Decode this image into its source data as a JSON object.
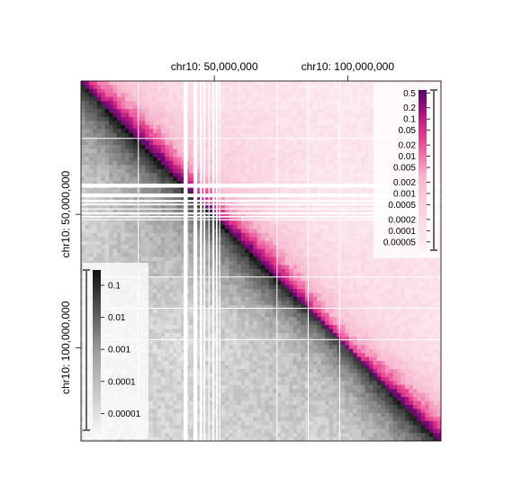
{
  "chart_data": {
    "type": "heatmap",
    "title": "",
    "matrix_layout": "upper triangle and lower triangle show separate contact maps of the same region",
    "x_axis": {
      "position": "top",
      "ticks": [
        {
          "value": 50000000,
          "label": "chr10: 50,000,000"
        },
        {
          "value": 100000000,
          "label": "chr10: 100,000,000"
        }
      ],
      "range": [
        0,
        135000000
      ]
    },
    "y_axis": {
      "position": "left",
      "ticks": [
        {
          "value": 50000000,
          "label": "chr10: 50,000,000"
        },
        {
          "value": 100000000,
          "label": "chr10: 100,000,000"
        }
      ],
      "range": [
        0,
        135000000
      ],
      "reversed": true
    },
    "upper_triangle": {
      "colormap": "white-pink-purple",
      "scale": "log",
      "legend_position": "top-right",
      "legend_ticks": [
        "0.5",
        "0.2",
        "0.1",
        "0.05",
        "0.02",
        "0.01",
        "0.005",
        "0.002",
        "0.001",
        "0.0005",
        "0.0002",
        "0.0001",
        "0.00005"
      ],
      "legend_values": [
        0.5,
        0.2,
        0.1,
        0.05,
        0.02,
        0.01,
        0.005,
        0.002,
        0.001,
        0.0005,
        0.0002,
        0.0001,
        5e-05
      ],
      "legend_range": [
        3e-05,
        0.6
      ]
    },
    "lower_triangle": {
      "colormap": "white-grey-black",
      "scale": "log",
      "legend_position": "bottom-left",
      "legend_ticks": [
        "0.1",
        "0.01",
        "0.001",
        "0.0001",
        "0.00001"
      ],
      "legend_values": [
        0.1,
        0.01,
        0.001,
        0.0001,
        1e-05
      ],
      "legend_range": [
        3e-06,
        0.3
      ]
    },
    "gaps_mb": [
      {
        "start": 38.5,
        "end": 40.0
      },
      {
        "start": 42.2,
        "end": 43.6
      },
      {
        "start": 44.6,
        "end": 45.4
      },
      {
        "start": 46.0,
        "end": 46.6
      },
      {
        "start": 47.8,
        "end": 48.2
      },
      {
        "start": 49.3,
        "end": 50.0
      },
      {
        "start": 50.6,
        "end": 51.2
      },
      {
        "start": 51.8,
        "end": 52.2
      }
    ],
    "grid_lines_mb": [
      21.5,
      73.5,
      85.2,
      97.0
    ]
  }
}
